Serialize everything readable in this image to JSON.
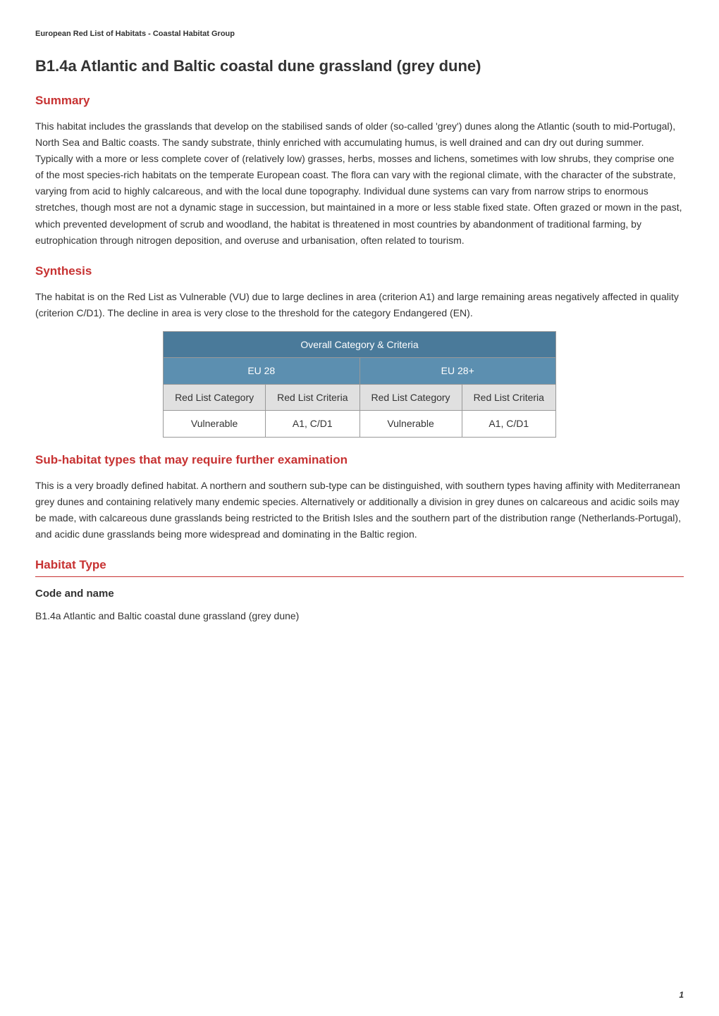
{
  "breadcrumb": "European Red List of Habitats - Coastal Habitat Group",
  "title": "B1.4a Atlantic and Baltic coastal dune grassland (grey dune)",
  "sections": {
    "summary": {
      "heading": "Summary",
      "text": "This habitat includes the grasslands that develop on the stabilised sands of older (so-called 'grey') dunes along the Atlantic (south to mid-Portugal), North Sea and Baltic coasts. The sandy substrate, thinly enriched with accumulating humus, is well drained and can dry out during summer. Typically with a more or less complete cover of (relatively low) grasses, herbs, mosses and lichens, sometimes with low shrubs, they comprise one of the most species-rich habitats on the temperate European coast. The flora can vary with the regional climate, with the character of the substrate, varying from acid to highly calcareous, and with the local dune topography. Individual dune systems can vary from narrow strips to enormous stretches, though most are not a dynamic stage in succession, but maintained in a more or less stable fixed state. Often grazed or mown in the past, which prevented development of scrub and woodland, the habitat is threatened in most countries by abandonment of traditional farming, by eutrophication through nitrogen deposition,  and overuse and urbanisation, often related to tourism."
    },
    "synthesis": {
      "heading": "Synthesis",
      "text": "The habitat is on the Red List as Vulnerable (VU) due to large declines in area (criterion A1) and large remaining areas negatively affected in quality (criterion C/D1). The decline in area is very close to the threshold for the category Endangered (EN)."
    },
    "subhabitat": {
      "heading": "Sub-habitat types that may require further examination",
      "text": "This is a very broadly defined habitat. A northern and southern sub-type can be distinguished, with southern types having affinity with Mediterranean grey dunes and containing relatively many endemic species. Alternatively or additionally a division in grey dunes on calcareous and acidic soils may be made, with calcareous dune grasslands being restricted to the British Isles and the southern part of the distribution range (Netherlands-Portugal), and acidic dune grasslands being more widespread and dominating in the Baltic region."
    },
    "habitat_type": {
      "heading": "Habitat Type",
      "subsection": "Code and name",
      "text": "B1.4a Atlantic and Baltic coastal dune grassland (grey dune)"
    }
  },
  "criteria_table": {
    "type": "table",
    "main_header": "Overall Category & Criteria",
    "main_header_bg": "#4a7a9a",
    "main_header_color": "#ffffff",
    "subheader_bg": "#5c8fb0",
    "subheader_color": "#ffffff",
    "label_row_bg": "#e0e0e0",
    "data_row_bg": "#ffffff",
    "border_color": "#999999",
    "subheaders": [
      "EU 28",
      "EU 28+"
    ],
    "column_labels": [
      "Red List Category",
      "Red List Criteria",
      "Red List Category",
      "Red List Criteria"
    ],
    "data_row": [
      "Vulnerable",
      "A1, C/D1",
      "Vulnerable",
      "A1, C/D1"
    ]
  },
  "footer": {
    "page_number": "1"
  },
  "colors": {
    "heading_red": "#c73232",
    "text_dark": "#333333",
    "table_header_blue": "#4a7a9a",
    "table_subheader_blue": "#5c8fb0",
    "table_label_grey": "#e0e0e0",
    "background": "#ffffff"
  },
  "typography": {
    "body_fontsize": 14,
    "h1_fontsize": 22,
    "h2_fontsize": 17,
    "h3_fontsize": 15,
    "breadcrumb_fontsize": 11,
    "line_height": 1.6
  }
}
